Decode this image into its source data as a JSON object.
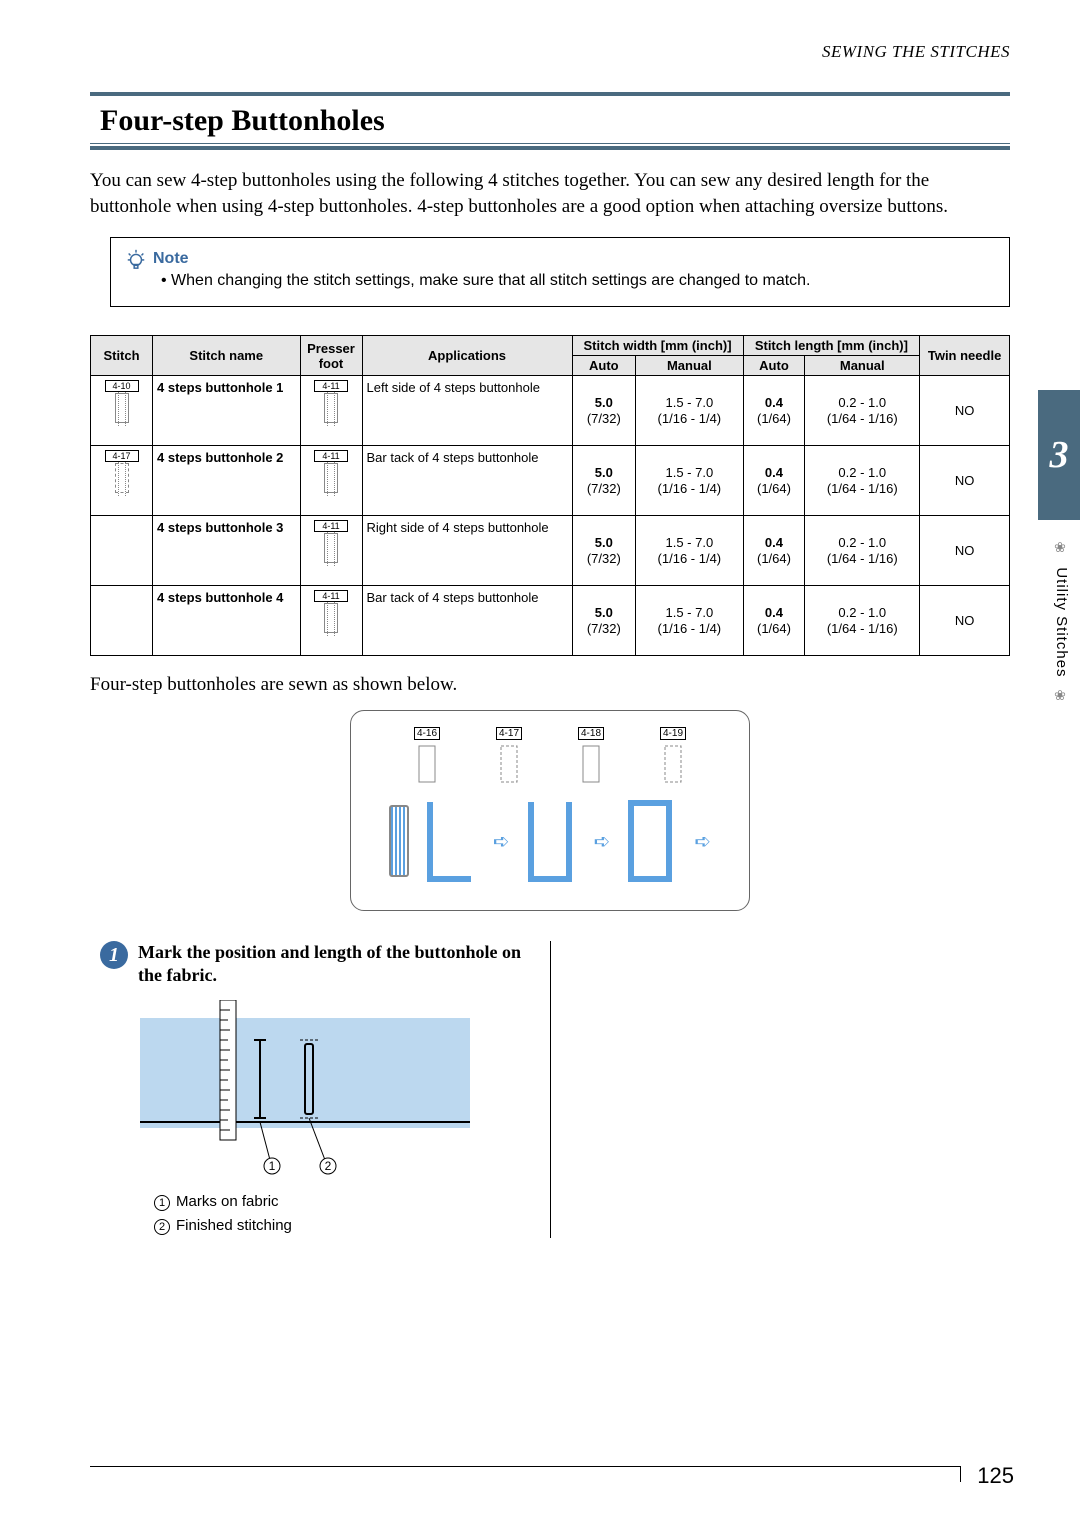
{
  "running_head": "SEWING THE STITCHES",
  "chapter_number": "3",
  "side_label": "Utility Stitches",
  "page_number": "125",
  "title": "Four-step Buttonholes",
  "intro": "You can sew 4-step buttonholes using the following 4 stitches together. You can sew any desired length for the buttonhole when using 4-step buttonholes. 4-step buttonholes are a good option when attaching oversize buttons.",
  "note": {
    "title": "Note",
    "text": "• When changing the stitch settings, make sure that all stitch settings are changed to match."
  },
  "table": {
    "headers": {
      "stitch": "Stitch",
      "name": "Stitch name",
      "foot": "Presser foot",
      "app": "Applications",
      "width": "Stitch width [mm (inch)]",
      "length": "Stitch length [mm (inch)]",
      "twin": "Twin needle",
      "auto": "Auto",
      "manual": "Manual"
    },
    "width_auto": "5.0 (7/32)",
    "width_manual": "1.5 - 7.0 (1/16 - 1/4)",
    "length_auto": "0.4 (1/64)",
    "length_manual": "0.2 - 1.0 (1/64 - 1/16)",
    "twin_val": "NO",
    "foot_label": "4-11",
    "rows": [
      {
        "icon_label": "4-10",
        "name": "4 steps buttonhole 1",
        "app": "Left side of 4 steps buttonhole"
      },
      {
        "icon_label": "4-17",
        "name": "4 steps buttonhole 2",
        "app": "Bar tack of 4 steps buttonhole"
      },
      {
        "icon_label": "",
        "name": "4 steps buttonhole 3",
        "app": "Right side of 4 steps buttonhole"
      },
      {
        "icon_label": "",
        "name": "4 steps buttonhole 4",
        "app": "Bar tack of 4 steps buttonhole"
      }
    ]
  },
  "caption": "Four-step buttonholes are sewn as shown below.",
  "diagram_labels": [
    "4-16",
    "4-17",
    "4-18",
    "4-19"
  ],
  "step1": {
    "num": "1",
    "title": "Mark the position and length of the buttonhole on the fabric.",
    "legend1": "Marks on fabric",
    "legend2": "Finished stitching"
  },
  "colors": {
    "teal": "#4a6a7f",
    "blue": "#3a6a9f",
    "skyarrow": "#5aa0e0",
    "illus_bg": "#bcd8ef"
  }
}
